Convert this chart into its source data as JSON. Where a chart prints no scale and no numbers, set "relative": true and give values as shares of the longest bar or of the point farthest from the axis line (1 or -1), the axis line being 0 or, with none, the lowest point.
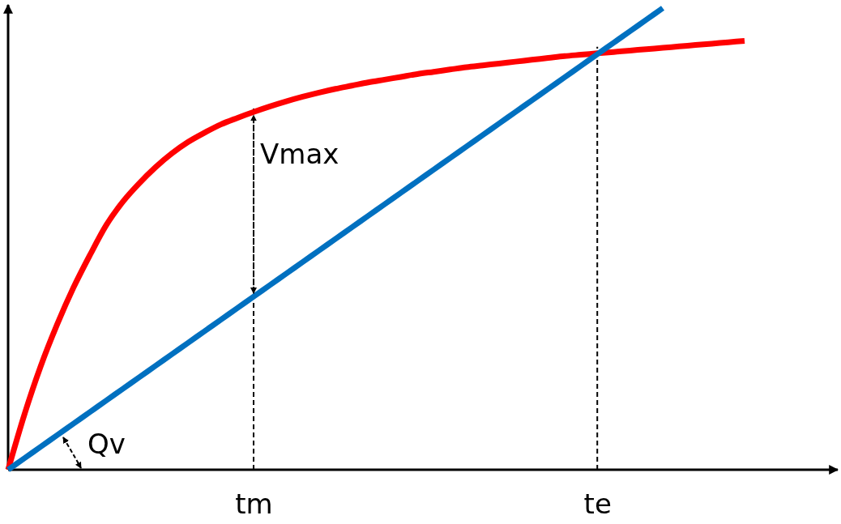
{
  "chart_data": {
    "type": "line",
    "relative": true,
    "tick_labels": "x",
    "line_style": "solid",
    "marker": "none",
    "grid": "x",
    "categories": [
      null,
      null,
      null,
      null,
      null,
      null,
      null,
      null,
      null,
      null,
      null,
      null,
      null,
      null,
      null,
      "tm",
      null,
      null,
      null,
      null,
      null,
      null,
      null,
      null,
      null,
      null,
      null,
      null,
      null,
      null,
      null,
      null,
      null,
      null,
      null,
      null,
      "te",
      null,
      null,
      null,
      null,
      null,
      null,
      null,
      null,
      null
    ],
    "series": [
      {
        "color": "#ff0000",
        "values": [
          0,
          0.12,
          0.225,
          0.315,
          0.395,
          0.465,
          0.53,
          0.58,
          0.62,
          0.655,
          0.685,
          0.71,
          0.73,
          0.748,
          0.762,
          0.775,
          0.787,
          0.798,
          0.808,
          0.817,
          0.825,
          0.832,
          0.839,
          0.845,
          0.851,
          0.857,
          0.862,
          0.867,
          0.872,
          0.876,
          0.88,
          0.884,
          0.888,
          0.892,
          0.896,
          0.899,
          0.902,
          0.905,
          0.908,
          0.911,
          0.914,
          0.917,
          0.92,
          0.923,
          0.926,
          0.929
        ]
      },
      {
        "color": "#0070c0",
        "values": [
          0,
          0.025,
          0.05,
          0.075,
          0.1,
          0.125,
          0.15,
          0.175,
          0.2,
          0.225,
          0.25,
          0.275,
          0.3,
          0.325,
          0.35,
          0.375,
          0.4,
          0.425,
          0.45,
          0.475,
          0.5,
          0.525,
          0.55,
          0.575,
          0.6,
          0.625,
          0.65,
          0.675,
          0.7,
          0.725,
          0.75,
          0.775,
          0.8,
          0.825,
          0.85,
          0.875,
          0.9,
          0.925,
          0.95,
          0.975,
          1,
          null,
          null,
          null,
          null,
          null
        ]
      }
    ],
    "annotations": [
      "Vmax",
      "Qv"
    ]
  }
}
